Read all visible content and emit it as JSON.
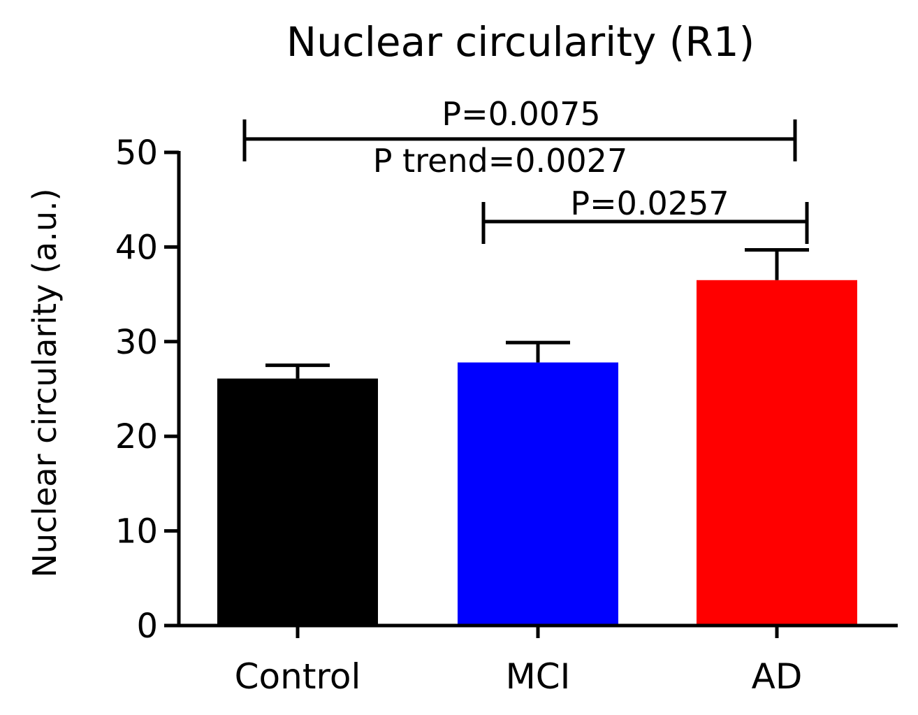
{
  "chart_data": {
    "type": "bar",
    "title": "Nuclear circularity (R1)",
    "xlabel": "",
    "ylabel": "Nuclear circularity (a.u.)",
    "ylim": [
      0,
      50
    ],
    "yticks": [
      0,
      10,
      20,
      30,
      40,
      50
    ],
    "categories": [
      "Control",
      "MCI",
      "AD"
    ],
    "values": [
      26.1,
      27.8,
      36.5
    ],
    "errors": [
      1.4,
      2.1,
      3.2
    ],
    "colors": [
      "#000000",
      "#0000ff",
      "#ff0000"
    ],
    "annotations": [
      {
        "text": "P=0.0075",
        "from": "Control",
        "to": "AD",
        "bracket_at": 52
      },
      {
        "text": "P trend=0.0027",
        "from": null,
        "to": null,
        "bracket_at": null
      },
      {
        "text": "P=0.0257",
        "from": "MCI",
        "to": "AD",
        "bracket_at": 42.8
      }
    ]
  }
}
